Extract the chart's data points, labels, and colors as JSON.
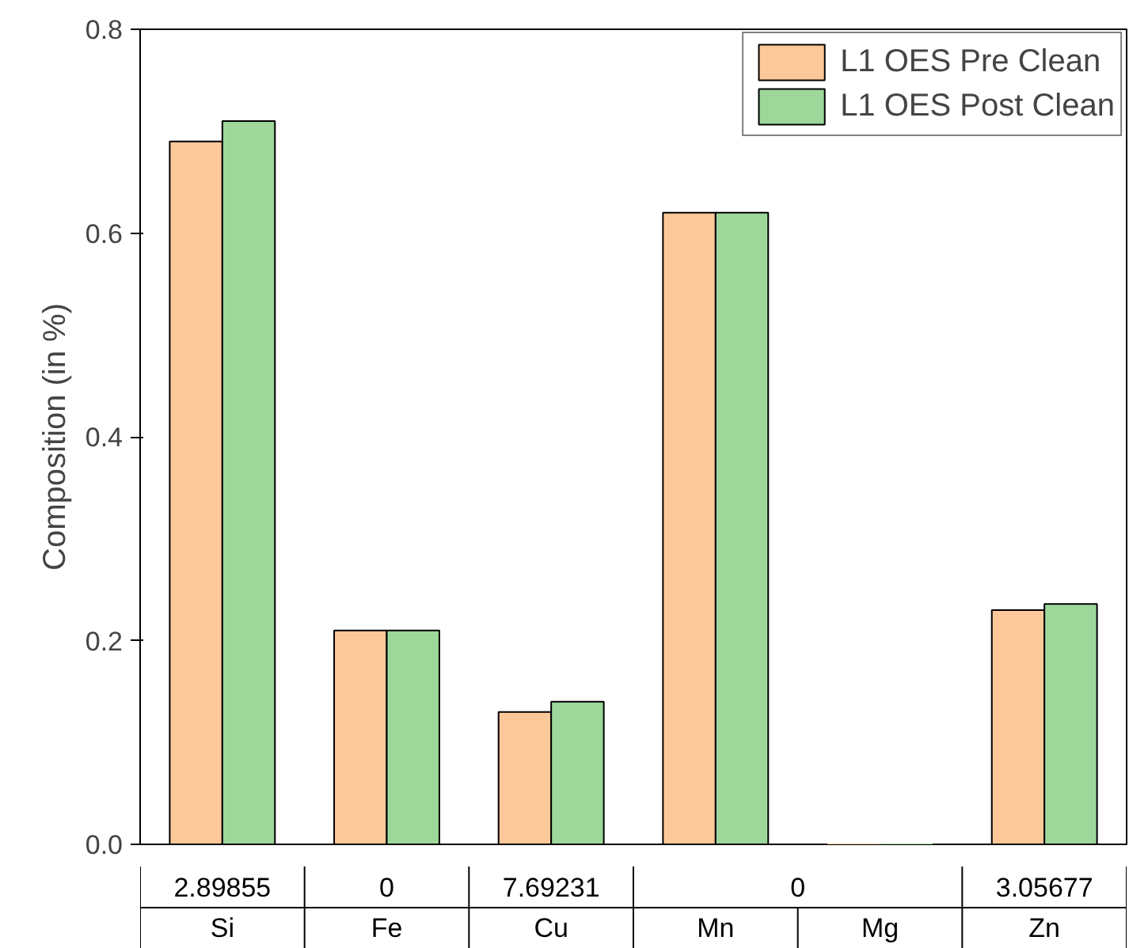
{
  "chart_data": {
    "type": "bar",
    "ylabel": "Composition (in %)",
    "categories": [
      "Si",
      "Fe",
      "Cu",
      "Mn",
      "Mg",
      "Zn"
    ],
    "series": [
      {
        "name": "L1 OES Pre Clean",
        "color": "#fdc899",
        "values": [
          0.69,
          0.21,
          0.13,
          0.62,
          0,
          0.23
        ]
      },
      {
        "name": "L1 OES Post Clean",
        "color": "#9ed79a",
        "values": [
          0.71,
          0.21,
          0.14,
          0.62,
          0,
          0.236
        ]
      }
    ],
    "ylim": [
      0,
      0.8
    ],
    "yticks": [
      {
        "value": 0,
        "label": "0.0"
      },
      {
        "value": 0.2,
        "label": "0.2"
      },
      {
        "value": 0.4,
        "label": "0.4"
      },
      {
        "value": 0.6,
        "label": "0.6"
      },
      {
        "value": 0.8,
        "label": "0.8"
      }
    ],
    "grid": false,
    "legend": "top right",
    "annotations": [
      "2.89855",
      "0",
      "7.69231",
      "0",
      "3.05677"
    ]
  }
}
